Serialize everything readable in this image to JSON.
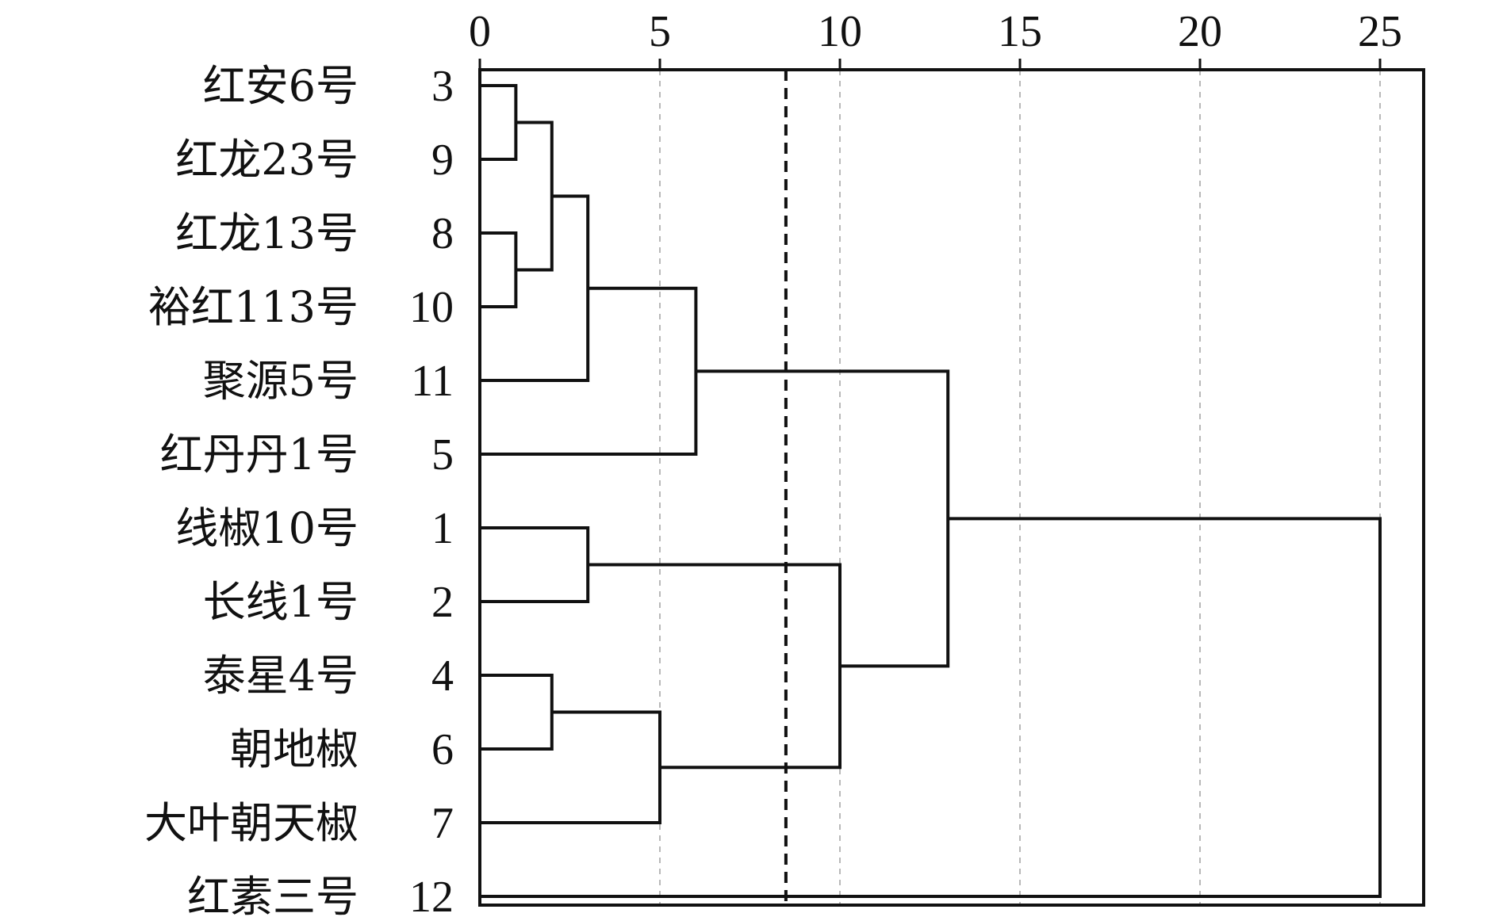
{
  "chart_data": {
    "type": "dendrogram",
    "x_axis": {
      "range": [
        0,
        25
      ],
      "ticks": [
        0,
        5,
        10,
        15,
        20,
        25
      ],
      "tick_labels": [
        "0",
        "5",
        "10",
        "15",
        "20",
        "25"
      ],
      "grid": "dashed-vertical"
    },
    "cut_line": {
      "value": 8.5,
      "style": "dashed"
    },
    "leaves": [
      {
        "id": "3",
        "name": "红安6号"
      },
      {
        "id": "9",
        "name": "红龙23号"
      },
      {
        "id": "8",
        "name": "红龙13号"
      },
      {
        "id": "10",
        "name": "裕红113号"
      },
      {
        "id": "11",
        "name": "聚源5号"
      },
      {
        "id": "5",
        "name": "红丹丹1号"
      },
      {
        "id": "1",
        "name": "线椒10号"
      },
      {
        "id": "2",
        "name": "长线1号"
      },
      {
        "id": "4",
        "name": "泰星4号"
      },
      {
        "id": "6",
        "name": "朝地椒"
      },
      {
        "id": "7",
        "name": "大叶朝天椒"
      },
      {
        "id": "12",
        "name": "红素三号"
      }
    ],
    "merges": [
      {
        "left": "leaf:0",
        "right": "leaf:1",
        "height": 1
      },
      {
        "left": "leaf:2",
        "right": "leaf:3",
        "height": 1
      },
      {
        "left": "node:0",
        "right": "node:1",
        "height": 2
      },
      {
        "left": "node:2",
        "right": "leaf:4",
        "height": 3
      },
      {
        "left": "node:3",
        "right": "leaf:5",
        "height": 6
      },
      {
        "left": "leaf:6",
        "right": "leaf:7",
        "height": 3
      },
      {
        "left": "leaf:8",
        "right": "leaf:9",
        "height": 2
      },
      {
        "left": "node:6",
        "right": "leaf:10",
        "height": 5
      },
      {
        "left": "node:5",
        "right": "node:7",
        "height": 10
      },
      {
        "left": "node:4",
        "right": "node:8",
        "height": 13
      },
      {
        "left": "node:9",
        "right": "leaf:11",
        "height": 25
      }
    ]
  }
}
